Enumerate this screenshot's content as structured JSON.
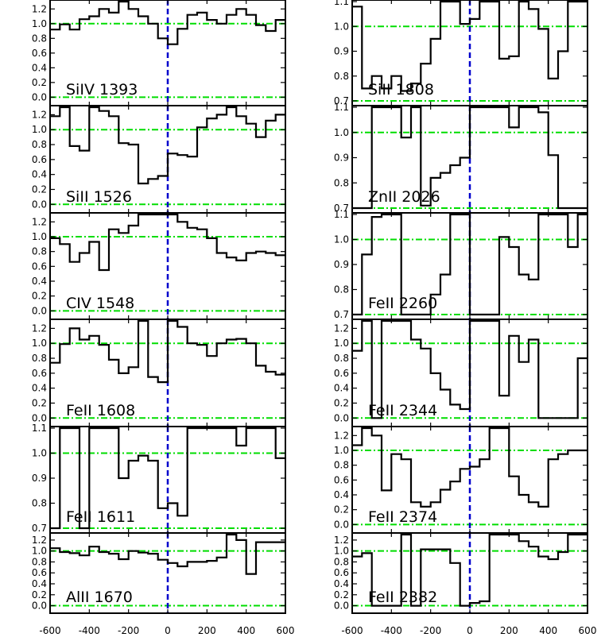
{
  "chart_data": {
    "type": "line",
    "title": "",
    "xlabel": "",
    "ylabel": "",
    "xlim": [
      -600,
      600
    ],
    "x_ticks": [
      -600,
      -400,
      -200,
      0,
      200,
      400,
      600
    ],
    "x_tick_labels_left": [
      "-600",
      "-400",
      "-200",
      "0",
      "200",
      "400",
      "600"
    ],
    "x_tick_labels_right": [
      "-600",
      "-400",
      "-200",
      "0",
      "200",
      "400",
      "600"
    ],
    "colors": {
      "spectrum": "#000000",
      "reference": "#00dd00",
      "zero_velocity": "#0000cc"
    },
    "bin_edges": [
      -600,
      -550,
      -500,
      -450,
      -400,
      -350,
      -300,
      -250,
      -200,
      -150,
      -100,
      -50,
      0,
      50,
      100,
      150,
      200,
      250,
      300,
      350,
      400,
      450,
      500,
      550,
      600
    ],
    "panels": [
      {
        "label": "SiIV 1393",
        "column": "left",
        "ylim": [
          -0.05,
          1.3
        ],
        "y_ticks": [
          0.0,
          0.2,
          0.4,
          0.6,
          0.8,
          1.0,
          1.2
        ],
        "y_tick_labels": [
          "0.0",
          "0.2",
          "0.4",
          "0.6",
          "0.8",
          "1.0",
          "1.2"
        ],
        "ref_lines": [
          1.0,
          0.0
        ],
        "values": [
          0.92,
          0.99,
          0.92,
          1.06,
          1.1,
          1.2,
          1.15,
          1.3,
          1.2,
          1.1,
          1.0,
          0.8,
          0.72,
          0.93,
          1.12,
          1.15,
          1.05,
          1.0,
          1.12,
          1.2,
          1.12,
          0.98,
          0.9,
          1.05
        ]
      },
      {
        "label": "SiII 1526",
        "column": "left",
        "ylim": [
          -0.05,
          1.3
        ],
        "y_ticks": [
          0.0,
          0.2,
          0.4,
          0.6,
          0.8,
          1.0,
          1.2
        ],
        "y_tick_labels": [
          "0.0",
          "0.2",
          "0.4",
          "0.6",
          "0.8",
          "1.0",
          "1.2"
        ],
        "ref_lines": [
          1.0,
          0.0
        ],
        "values": [
          1.18,
          1.3,
          0.78,
          0.72,
          1.3,
          1.25,
          1.18,
          0.82,
          0.8,
          0.28,
          0.34,
          0.38,
          0.68,
          0.66,
          0.64,
          1.03,
          1.15,
          1.2,
          1.3,
          1.18,
          1.08,
          0.9,
          1.12,
          1.2
        ]
      },
      {
        "label": "CIV 1548",
        "column": "left",
        "ylim": [
          -0.05,
          1.3
        ],
        "y_ticks": [
          0.0,
          0.2,
          0.4,
          0.6,
          0.8,
          1.0,
          1.2
        ],
        "y_tick_labels": [
          "0.0",
          "0.2",
          "0.4",
          "0.6",
          "0.8",
          "1.0",
          "1.2"
        ],
        "ref_lines": [
          1.0,
          0.0
        ],
        "values": [
          0.98,
          0.9,
          0.66,
          0.78,
          0.93,
          0.55,
          1.1,
          1.05,
          1.15,
          1.3,
          1.3,
          1.3,
          1.3,
          1.2,
          1.12,
          1.1,
          0.98,
          0.78,
          0.72,
          0.68,
          0.78,
          0.8,
          0.78,
          0.75
        ]
      },
      {
        "label": "FeII 1608",
        "column": "left",
        "ylim": [
          -0.05,
          1.3
        ],
        "y_ticks": [
          0.0,
          0.2,
          0.4,
          0.6,
          0.8,
          1.0,
          1.2
        ],
        "y_tick_labels": [
          "0.0",
          "0.2",
          "0.4",
          "0.6",
          "0.8",
          "1.0",
          "1.2"
        ],
        "ref_lines": [
          1.0,
          0.0
        ],
        "values": [
          0.74,
          0.99,
          1.2,
          1.05,
          1.1,
          0.98,
          0.78,
          0.6,
          0.68,
          1.3,
          0.55,
          0.48,
          1.3,
          1.22,
          1.0,
          0.98,
          0.83,
          1.0,
          1.05,
          1.06,
          1.0,
          0.7,
          0.62,
          0.58
        ]
      },
      {
        "label": "FeII 1611",
        "column": "left",
        "ylim": [
          0.7,
          1.1
        ],
        "y_ticks": [
          0.7,
          0.8,
          0.9,
          1.0,
          1.1
        ],
        "y_tick_labels": [
          "0.7",
          "0.8",
          "0.9",
          "1.0",
          "1.1"
        ],
        "ref_lines": [
          1.0,
          0.7
        ],
        "values": [
          0.7,
          1.1,
          1.1,
          0.7,
          1.1,
          1.1,
          1.1,
          0.9,
          0.97,
          0.99,
          0.97,
          0.78,
          0.8,
          0.75,
          1.1,
          1.1,
          1.1,
          1.1,
          1.1,
          1.03,
          1.1,
          1.1,
          1.1,
          0.98
        ]
      },
      {
        "label": "AlII 1670",
        "column": "left",
        "ylim": [
          -0.05,
          1.3
        ],
        "y_ticks": [
          0.0,
          0.2,
          0.4,
          0.6,
          0.8,
          1.0,
          1.2
        ],
        "y_tick_labels": [
          "0.0",
          "0.2",
          "0.4",
          "0.6",
          "0.8",
          "1.0",
          "1.2"
        ],
        "ref_lines": [
          1.0,
          0.0
        ],
        "values": [
          1.05,
          0.98,
          0.96,
          0.92,
          1.08,
          0.98,
          0.95,
          0.85,
          1.0,
          0.97,
          0.95,
          0.84,
          0.78,
          0.72,
          0.8,
          0.8,
          0.82,
          0.88,
          1.3,
          1.2,
          0.58,
          1.16,
          1.16,
          1.16
        ]
      },
      {
        "label": "SiII 1808",
        "column": "right",
        "ylim": [
          0.7,
          1.1
        ],
        "y_ticks": [
          0.7,
          0.8,
          0.9,
          1.0,
          1.1
        ],
        "y_tick_labels": [
          "0.7",
          "0.8",
          "0.9",
          "1.0",
          "1.1"
        ],
        "ref_lines": [
          1.0,
          0.7
        ],
        "values": [
          1.08,
          0.75,
          0.8,
          0.75,
          0.8,
          0.74,
          0.77,
          0.85,
          0.95,
          1.1,
          1.1,
          1.01,
          1.03,
          1.1,
          1.1,
          0.87,
          0.88,
          1.1,
          1.07,
          0.99,
          0.79,
          0.9,
          1.1,
          1.1
        ]
      },
      {
        "label": "ZnII 2026",
        "column": "right",
        "ylim": [
          0.7,
          1.1
        ],
        "y_ticks": [
          0.7,
          0.8,
          0.9,
          1.0,
          1.1
        ],
        "y_tick_labels": [
          "0.7",
          "0.8",
          "0.9",
          "1.0",
          "1.1"
        ],
        "ref_lines": [
          1.0,
          0.7
        ],
        "values": [
          0.7,
          0.7,
          1.1,
          1.1,
          1.1,
          0.98,
          1.1,
          0.71,
          0.82,
          0.84,
          0.87,
          0.9,
          1.1,
          1.1,
          1.1,
          1.1,
          1.02,
          1.1,
          1.1,
          1.08,
          0.91,
          0.7,
          0.7,
          0.7
        ]
      },
      {
        "label": "FeII 2260",
        "column": "right",
        "ylim": [
          0.7,
          1.1
        ],
        "y_ticks": [
          0.7,
          0.8,
          0.9,
          1.0,
          1.1
        ],
        "y_tick_labels": [
          "0.7",
          "0.8",
          "0.9",
          "1.0",
          "1.1"
        ],
        "ref_lines": [
          1.0,
          0.7
        ],
        "values": [
          0.7,
          0.94,
          1.09,
          1.1,
          1.1,
          0.7,
          0.7,
          0.7,
          0.78,
          0.86,
          1.1,
          1.1,
          0.7,
          0.7,
          0.7,
          1.01,
          0.97,
          0.86,
          0.84,
          1.1,
          1.1,
          1.1,
          0.97,
          1.1
        ]
      },
      {
        "label": "FeII 2344",
        "column": "right",
        "ylim": [
          -0.05,
          1.3
        ],
        "y_ticks": [
          0.0,
          0.2,
          0.4,
          0.6,
          0.8,
          1.0,
          1.2
        ],
        "y_tick_labels": [
          "0.0",
          "0.2",
          "0.4",
          "0.6",
          "0.8",
          "1.0",
          "1.2"
        ],
        "ref_lines": [
          1.0,
          0.0
        ],
        "values": [
          0.9,
          1.3,
          0.0,
          1.3,
          1.3,
          1.3,
          1.05,
          0.93,
          0.6,
          0.38,
          0.18,
          0.12,
          1.3,
          1.3,
          1.3,
          0.3,
          1.1,
          0.75,
          1.05,
          0.0,
          0.0,
          0.0,
          0.0,
          0.8
        ]
      },
      {
        "label": "FeII 2374",
        "column": "right",
        "ylim": [
          -0.05,
          1.3
        ],
        "y_ticks": [
          0.0,
          0.2,
          0.4,
          0.6,
          0.8,
          1.0,
          1.2
        ],
        "y_tick_labels": [
          "0.0",
          "0.2",
          "0.4",
          "0.6",
          "0.8",
          "1.0",
          "1.2"
        ],
        "ref_lines": [
          1.0,
          0.0
        ],
        "values": [
          1.07,
          1.3,
          1.2,
          0.46,
          0.95,
          0.88,
          0.3,
          0.24,
          0.3,
          0.47,
          0.58,
          0.75,
          0.78,
          0.88,
          1.3,
          1.3,
          0.65,
          0.4,
          0.3,
          0.24,
          0.88,
          0.95,
          1.0,
          1.0
        ]
      },
      {
        "label": "FeII 2382",
        "column": "right",
        "ylim": [
          -0.05,
          1.3
        ],
        "y_ticks": [
          0.0,
          0.2,
          0.4,
          0.6,
          0.8,
          1.0,
          1.2
        ],
        "y_tick_labels": [
          "0.0",
          "0.2",
          "0.4",
          "0.6",
          "0.8",
          "1.0",
          "1.2"
        ],
        "ref_lines": [
          1.0,
          0.0
        ],
        "values": [
          0.9,
          0.96,
          0.0,
          0.0,
          0.0,
          1.3,
          0.0,
          1.03,
          1.03,
          1.03,
          0.78,
          0.0,
          0.05,
          0.08,
          1.3,
          1.3,
          1.3,
          1.18,
          1.08,
          0.9,
          0.85,
          0.98,
          1.3,
          1.3
        ]
      }
    ]
  }
}
